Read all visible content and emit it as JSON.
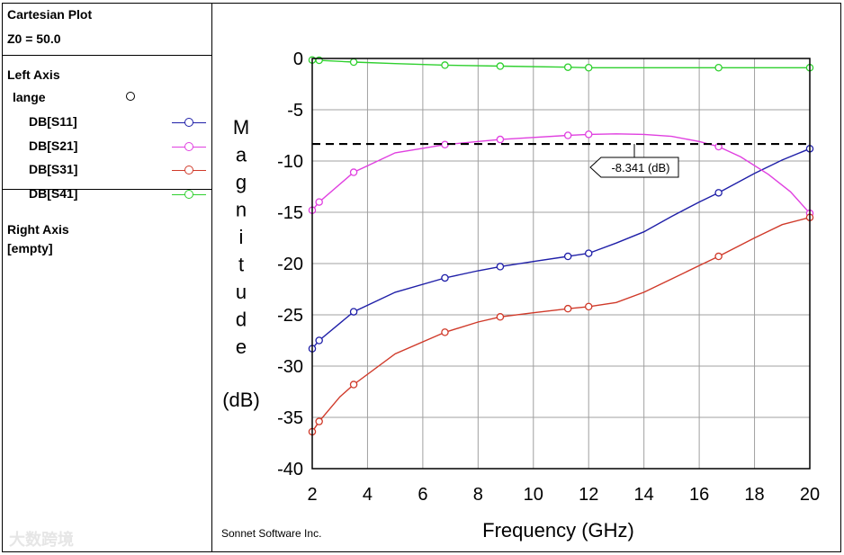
{
  "sidebar": {
    "plot_title": "Cartesian Plot",
    "z0": "Z0 = 50.0",
    "left_axis_title": "Left Axis",
    "group_name": "lange",
    "right_axis_title": "Right Axis",
    "right_axis_value": "[empty]"
  },
  "footer": {
    "credit": "Sonnet Software Inc."
  },
  "watermark": {
    "text": "大数跨境"
  },
  "chart_data": {
    "type": "line",
    "title": "",
    "xlabel": "Frequency (GHz)",
    "ylabel_letters": [
      "M",
      "a",
      "g",
      "n",
      "i",
      "t",
      "u",
      "d",
      "e"
    ],
    "ylabel_unit": "(dB)",
    "xlim": [
      2,
      20
    ],
    "ylim": [
      -40,
      0
    ],
    "xticks": [
      2,
      4,
      6,
      8,
      10,
      12,
      14,
      16,
      18,
      20
    ],
    "yticks": [
      0,
      -5,
      -10,
      -15,
      -20,
      -25,
      -30,
      -35,
      -40
    ],
    "grid": true,
    "marker_line": {
      "value": -8.341,
      "label": "-8.341 (dB)"
    },
    "series": [
      {
        "name": "DB[S11]",
        "color": "#1f1fa8",
        "x": [
          2,
          2.25,
          3.5,
          5,
          6.8,
          8,
          8.8,
          10,
          11.25,
          12,
          13,
          14,
          15,
          16,
          16.7,
          18,
          19,
          20
        ],
        "y": [
          -28.3,
          -27.5,
          -24.7,
          -22.8,
          -21.4,
          -20.7,
          -20.3,
          -19.8,
          -19.3,
          -19.0,
          -18.0,
          -16.9,
          -15.4,
          -14.0,
          -13.1,
          -11.2,
          -9.9,
          -8.8
        ],
        "markers_x": [
          2,
          2.25,
          3.5,
          6.8,
          8.8,
          11.25,
          12,
          16.7,
          20
        ]
      },
      {
        "name": "DB[S21]",
        "color": "#e040e0",
        "x": [
          2,
          2.25,
          3.5,
          5,
          6.8,
          8,
          8.8,
          10,
          11.25,
          12,
          13,
          14,
          15,
          16,
          16.7,
          17.5,
          18.5,
          19.3,
          20
        ],
        "y": [
          -14.8,
          -14.0,
          -11.1,
          -9.2,
          -8.4,
          -8.1,
          -7.9,
          -7.7,
          -7.5,
          -7.4,
          -7.35,
          -7.4,
          -7.6,
          -8.1,
          -8.6,
          -9.6,
          -11.3,
          -13.0,
          -15.1
        ],
        "markers_x": [
          2,
          2.25,
          3.5,
          6.8,
          8.8,
          11.25,
          12,
          16.7,
          20
        ]
      },
      {
        "name": "DB[S31]",
        "color": "#d03a2a",
        "x": [
          2,
          2.25,
          3,
          3.5,
          5,
          6.8,
          8,
          8.8,
          10,
          11.25,
          12,
          13,
          14,
          15,
          16,
          16.7,
          18,
          19,
          20
        ],
        "y": [
          -36.4,
          -35.4,
          -33.0,
          -31.8,
          -28.8,
          -26.7,
          -25.7,
          -25.2,
          -24.8,
          -24.4,
          -24.2,
          -23.8,
          -22.8,
          -21.5,
          -20.2,
          -19.3,
          -17.5,
          -16.2,
          -15.5
        ],
        "markers_x": [
          2,
          2.25,
          3.5,
          6.8,
          8.8,
          11.25,
          12,
          16.7,
          20
        ]
      },
      {
        "name": "DB[S41]",
        "color": "#2fd02f",
        "x": [
          2,
          2.25,
          3.5,
          5,
          6.8,
          8.8,
          11.25,
          12,
          14,
          16.7,
          20
        ],
        "y": [
          -0.15,
          -0.18,
          -0.35,
          -0.5,
          -0.65,
          -0.75,
          -0.85,
          -0.9,
          -0.9,
          -0.9,
          -0.9
        ],
        "markers_x": [
          2,
          2.25,
          3.5,
          6.8,
          8.8,
          11.25,
          12,
          16.7,
          20
        ]
      }
    ]
  }
}
